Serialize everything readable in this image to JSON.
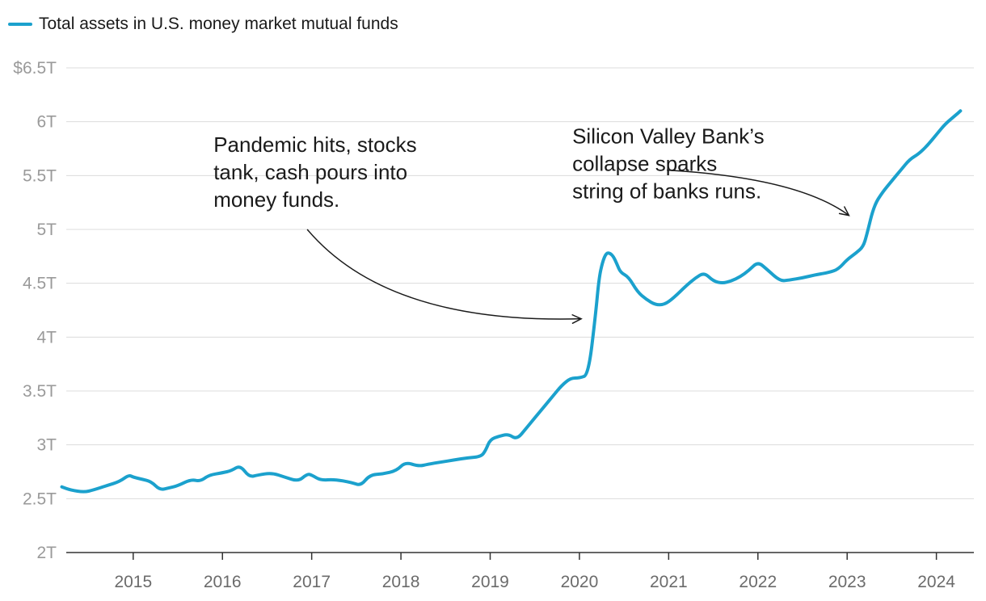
{
  "chart_data": {
    "type": "line",
    "legend": {
      "position": "top-left"
    },
    "grid": true,
    "xlim": [
      2014.25,
      2024.42
    ],
    "ylim": [
      2.0,
      6.5
    ],
    "yticks": [
      {
        "value": 6.5,
        "label": "$6.5T"
      },
      {
        "value": 6.0,
        "label": "6T"
      },
      {
        "value": 5.5,
        "label": "5.5T"
      },
      {
        "value": 5.0,
        "label": "5T"
      },
      {
        "value": 4.5,
        "label": "4.5T"
      },
      {
        "value": 4.0,
        "label": "4T"
      },
      {
        "value": 3.5,
        "label": "3.5T"
      },
      {
        "value": 3.0,
        "label": "3T"
      },
      {
        "value": 2.5,
        "label": "2.5T"
      },
      {
        "value": 2.0,
        "label": "2T"
      }
    ],
    "xticks": [
      {
        "value": 2015,
        "label": "2015"
      },
      {
        "value": 2016,
        "label": "2016"
      },
      {
        "value": 2017,
        "label": "2017"
      },
      {
        "value": 2018,
        "label": "2018"
      },
      {
        "value": 2019,
        "label": "2019"
      },
      {
        "value": 2020,
        "label": "2020"
      },
      {
        "value": 2021,
        "label": "2021"
      },
      {
        "value": 2022,
        "label": "2022"
      },
      {
        "value": 2023,
        "label": "2023"
      },
      {
        "value": 2024,
        "label": "2024"
      }
    ],
    "series": [
      {
        "name": "Total assets in U.S. money market mutual funds",
        "color": "#1ba1cd",
        "x": [
          2014.2,
          2014.3,
          2014.45,
          2014.55,
          2014.7,
          2014.85,
          2014.95,
          2015.0,
          2015.1,
          2015.2,
          2015.3,
          2015.4,
          2015.5,
          2015.65,
          2015.75,
          2015.85,
          2016.0,
          2016.1,
          2016.2,
          2016.3,
          2016.4,
          2016.55,
          2016.7,
          2016.85,
          2016.95,
          2017.0,
          2017.1,
          2017.25,
          2017.45,
          2017.55,
          2017.65,
          2017.8,
          2017.95,
          2018.05,
          2018.2,
          2018.3,
          2018.45,
          2018.6,
          2018.75,
          2018.9,
          2018.95,
          2019.0,
          2019.1,
          2019.2,
          2019.3,
          2019.4,
          2019.5,
          2019.6,
          2019.7,
          2019.8,
          2019.9,
          2020.0,
          2020.1,
          2020.18,
          2020.22,
          2020.26,
          2020.3,
          2020.34,
          2020.38,
          2020.42,
          2020.46,
          2020.55,
          2020.65,
          2020.75,
          2020.85,
          2020.95,
          2021.05,
          2021.2,
          2021.3,
          2021.4,
          2021.5,
          2021.6,
          2021.7,
          2021.8,
          2021.9,
          2022.0,
          2022.1,
          2022.25,
          2022.35,
          2022.5,
          2022.65,
          2022.8,
          2022.9,
          2023.0,
          2023.1,
          2023.18,
          2023.22,
          2023.3,
          2023.4,
          2023.5,
          2023.6,
          2023.7,
          2023.8,
          2023.9,
          2024.0,
          2024.1,
          2024.2,
          2024.27
        ],
        "values": [
          2.61,
          2.58,
          2.56,
          2.58,
          2.62,
          2.66,
          2.72,
          2.7,
          2.68,
          2.66,
          2.58,
          2.6,
          2.62,
          2.68,
          2.66,
          2.72,
          2.74,
          2.76,
          2.81,
          2.7,
          2.72,
          2.74,
          2.7,
          2.66,
          2.73,
          2.72,
          2.67,
          2.68,
          2.65,
          2.62,
          2.72,
          2.73,
          2.76,
          2.84,
          2.8,
          2.82,
          2.84,
          2.86,
          2.88,
          2.89,
          2.95,
          3.05,
          3.08,
          3.1,
          3.05,
          3.15,
          3.25,
          3.35,
          3.45,
          3.55,
          3.62,
          3.62,
          3.65,
          4.2,
          4.55,
          4.7,
          4.78,
          4.78,
          4.75,
          4.68,
          4.6,
          4.56,
          4.42,
          4.35,
          4.3,
          4.3,
          4.36,
          4.48,
          4.55,
          4.6,
          4.52,
          4.5,
          4.52,
          4.56,
          4.62,
          4.7,
          4.63,
          4.52,
          4.53,
          4.55,
          4.58,
          4.6,
          4.63,
          4.72,
          4.78,
          4.84,
          4.95,
          5.22,
          5.35,
          5.45,
          5.55,
          5.65,
          5.7,
          5.78,
          5.88,
          5.98,
          6.05,
          6.1
        ]
      }
    ],
    "annotations": [
      {
        "lines": [
          "Pandemic hits, stocks",
          "tank, cash pours into",
          "money funds."
        ],
        "text_x": 2015.9,
        "text_y": 5.72,
        "arrow_from": [
          2016.95,
          5.0
        ],
        "arrow_ctrl": [
          2017.85,
          4.12
        ],
        "arrow_to": [
          2020.02,
          4.17
        ]
      },
      {
        "lines": [
          "Silicon Valley Bank’s",
          "collapse sparks",
          "string of banks runs."
        ],
        "text_x": 2019.92,
        "text_y": 5.8,
        "arrow_from": [
          2020.98,
          5.55
        ],
        "arrow_ctrl": [
          2022.45,
          5.48
        ],
        "arrow_to": [
          2023.02,
          5.13
        ]
      }
    ]
  }
}
